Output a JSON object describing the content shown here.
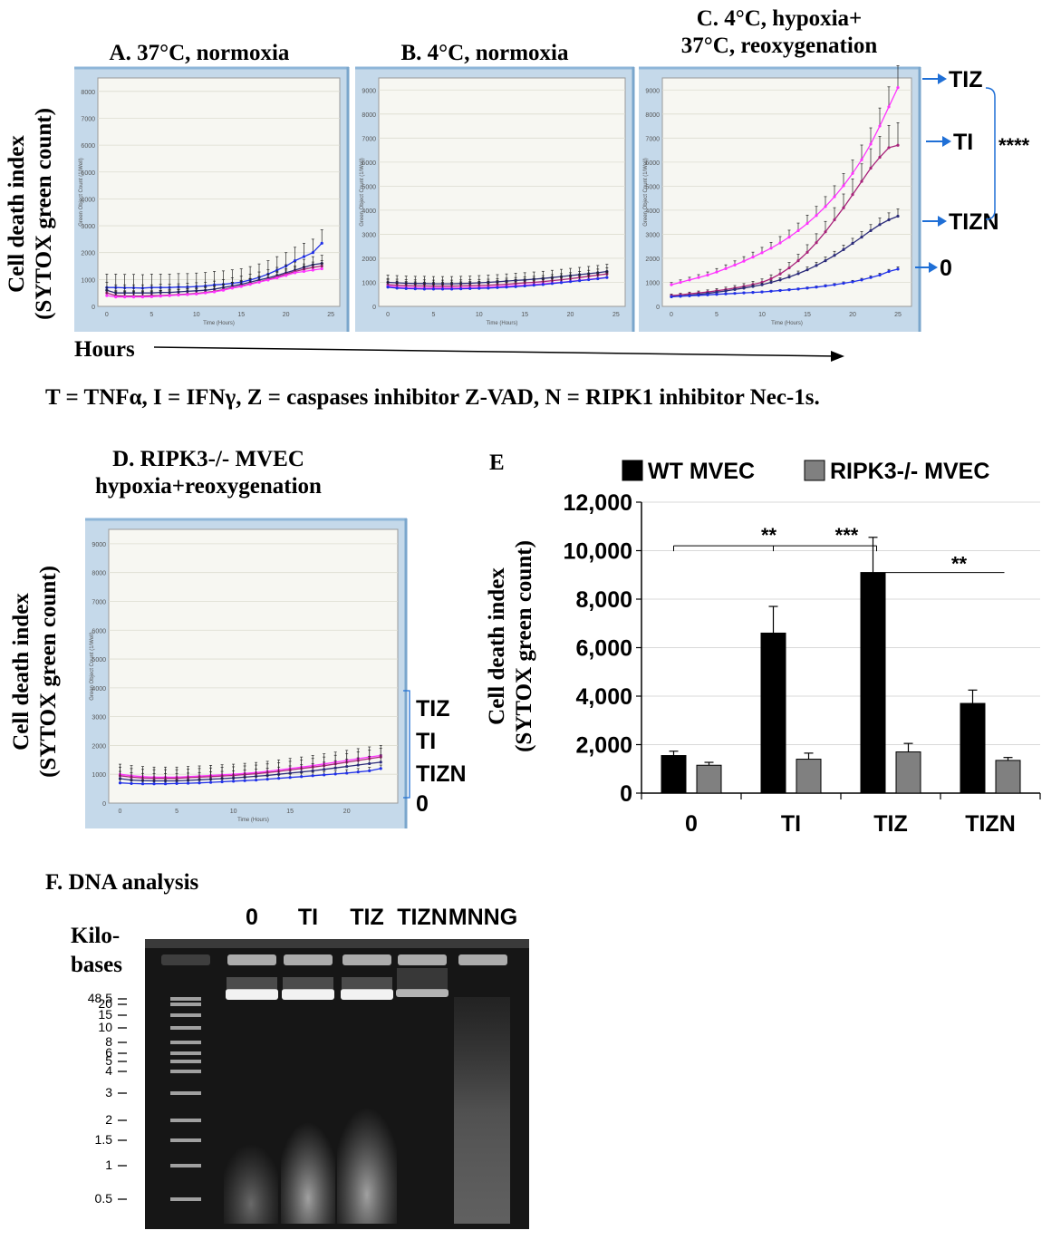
{
  "colors": {
    "pink": "#ff33ff",
    "purple": "#a8227a",
    "navy": "#2b2b7a",
    "blue": "#2030e8",
    "arrow": "#1f6fd6",
    "bar_wt": "#000000",
    "bar_ko": "#808080"
  },
  "figure_note": "T = TNFα, I = IFNγ, Z = caspases inhibitor Z-VAD, N = RIPK1 inhibitor Nec-1s.",
  "shared": {
    "ylabel_line1": "Cell death index",
    "ylabel_line2": "(SYTOX green count)",
    "hours_label": "Hours",
    "inner_ylabel": "Green Object Count (1/Well)",
    "inner_xlabel": "Time (Hours)"
  },
  "chart_data": [
    {
      "id": "A",
      "type": "line",
      "title": "A. 37°C, normoxia",
      "xlabel": "Time (Hours)",
      "ylabel": "Green Object Count (1/Well)",
      "xlim": [
        -1,
        26
      ],
      "ylim": [
        0,
        8500
      ],
      "xticks": [
        0,
        5,
        10,
        15,
        20,
        25
      ],
      "yticks": [
        1000,
        2000,
        3000,
        4000,
        5000,
        6000,
        7000,
        8000
      ],
      "x": [
        0,
        1,
        2,
        3,
        4,
        5,
        6,
        7,
        8,
        9,
        10,
        11,
        12,
        13,
        14,
        15,
        16,
        17,
        18,
        19,
        20,
        21,
        22,
        23,
        24
      ],
      "series": [
        {
          "name": "0",
          "color": "blue",
          "values": [
            700,
            700,
            690,
            690,
            680,
            700,
            700,
            700,
            720,
            720,
            740,
            760,
            800,
            820,
            860,
            900,
            980,
            1080,
            1200,
            1350,
            1500,
            1700,
            1850,
            2000,
            2350
          ],
          "err": 500
        },
        {
          "name": "TIZN",
          "color": "navy",
          "values": [
            600,
            500,
            500,
            500,
            500,
            500,
            520,
            520,
            540,
            560,
            580,
            600,
            640,
            700,
            760,
            820,
            900,
            980,
            1060,
            1150,
            1250,
            1350,
            1450,
            1550,
            1600
          ],
          "err": 300
        },
        {
          "name": "TI",
          "color": "purple",
          "values": [
            500,
            400,
            380,
            380,
            380,
            400,
            400,
            420,
            440,
            460,
            480,
            520,
            560,
            620,
            700,
            760,
            840,
            920,
            1000,
            1100,
            1200,
            1300,
            1380,
            1450,
            1500
          ],
          "err": 200
        },
        {
          "name": "TIZ",
          "color": "pink",
          "values": [
            400,
            350,
            350,
            350,
            350,
            360,
            380,
            400,
            420,
            440,
            460,
            500,
            540,
            600,
            680,
            740,
            820,
            900,
            980,
            1060,
            1150,
            1250,
            1300,
            1350,
            1400
          ],
          "err": 200
        }
      ]
    },
    {
      "id": "B",
      "type": "line",
      "title": "B. 4°C, normoxia",
      "xlabel": "Time (Hours)",
      "ylabel": "Green Object Count (1/Well)",
      "xlim": [
        -1,
        26
      ],
      "ylim": [
        0,
        9500
      ],
      "xticks": [
        0,
        5,
        10,
        15,
        20,
        25
      ],
      "yticks": [
        1000,
        2000,
        3000,
        4000,
        5000,
        6000,
        7000,
        8000,
        9000
      ],
      "x": [
        0,
        1,
        2,
        3,
        4,
        5,
        6,
        7,
        8,
        9,
        10,
        11,
        12,
        13,
        14,
        15,
        16,
        17,
        18,
        19,
        20,
        21,
        22,
        23,
        24
      ],
      "series": [
        {
          "name": "0",
          "color": "navy",
          "values": [
            1000,
            980,
            960,
            950,
            950,
            940,
            940,
            940,
            950,
            960,
            980,
            1000,
            1020,
            1050,
            1080,
            1100,
            1130,
            1160,
            1200,
            1240,
            1280,
            1320,
            1360,
            1400,
            1450
          ],
          "err": 300
        },
        {
          "name": "TIZN",
          "color": "purple",
          "values": [
            900,
            880,
            860,
            850,
            850,
            840,
            840,
            840,
            850,
            860,
            870,
            880,
            900,
            920,
            950,
            980,
            1000,
            1030,
            1070,
            1110,
            1150,
            1200,
            1250,
            1300,
            1350
          ],
          "err": 250
        },
        {
          "name": "TI",
          "color": "pink",
          "values": [
            850,
            800,
            780,
            770,
            760,
            760,
            760,
            760,
            770,
            780,
            790,
            800,
            820,
            840,
            860,
            880,
            910,
            940,
            970,
            1000,
            1040,
            1080,
            1120,
            1160,
            1200
          ],
          "err": 250
        },
        {
          "name": "TIZ",
          "color": "blue",
          "values": [
            800,
            760,
            740,
            730,
            720,
            720,
            720,
            720,
            730,
            740,
            750,
            760,
            780,
            800,
            820,
            850,
            880,
            910,
            950,
            990,
            1030,
            1070,
            1110,
            1150,
            1200
          ],
          "err": 200
        }
      ]
    },
    {
      "id": "C",
      "type": "line",
      "title": "C. 4°C, hypoxia+ 37°C, reoxygenation",
      "title_line1": "C. 4°C, hypoxia+",
      "title_line2": "37°C, reoxygenation",
      "xlabel": "Time (Hours)",
      "ylabel": "Green Object Count (1/Well)",
      "xlim": [
        -1,
        26.5
      ],
      "ylim": [
        0,
        9500
      ],
      "xticks": [
        0,
        5,
        10,
        15,
        20,
        25
      ],
      "yticks": [
        1000,
        2000,
        3000,
        4000,
        5000,
        6000,
        7000,
        8000,
        9000
      ],
      "x": [
        0,
        1,
        2,
        3,
        4,
        5,
        6,
        7,
        8,
        9,
        10,
        11,
        12,
        13,
        14,
        15,
        16,
        17,
        18,
        19,
        20,
        21,
        22,
        23,
        24,
        25
      ],
      "series": [
        {
          "name": "TIZ",
          "color": "pink",
          "values": [
            900,
            1000,
            1100,
            1200,
            1300,
            1430,
            1570,
            1720,
            1880,
            2050,
            2230,
            2420,
            2640,
            2880,
            3150,
            3450,
            3780,
            4150,
            4560,
            5020,
            5530,
            6100,
            6750,
            7500,
            8300,
            9100
          ],
          "err_frac": 0.1
        },
        {
          "name": "TI",
          "color": "purple",
          "values": [
            450,
            480,
            520,
            560,
            600,
            650,
            700,
            760,
            830,
            910,
            1000,
            1150,
            1350,
            1600,
            1900,
            2250,
            2650,
            3100,
            3600,
            4100,
            4650,
            5200,
            5750,
            6200,
            6600,
            6700
          ],
          "err_frac": 0.14
        },
        {
          "name": "TIZN",
          "color": "navy",
          "values": [
            400,
            430,
            460,
            500,
            540,
            590,
            640,
            700,
            760,
            830,
            900,
            1000,
            1100,
            1220,
            1360,
            1520,
            1700,
            1900,
            2120,
            2360,
            2620,
            2880,
            3150,
            3400,
            3600,
            3750
          ],
          "err_frac": 0.08
        },
        {
          "name": "0",
          "color": "blue",
          "values": [
            400,
            420,
            440,
            460,
            480,
            500,
            520,
            540,
            560,
            580,
            600,
            630,
            660,
            690,
            720,
            760,
            800,
            850,
            900,
            960,
            1020,
            1100,
            1200,
            1300,
            1450,
            1550
          ],
          "err_frac": 0.06
        }
      ]
    },
    {
      "id": "D",
      "type": "line",
      "title": "D. RIPK3-/- MVEC hypoxia+reoxygenation",
      "title_line1": "D. RIPK3-/- MVEC",
      "title_line2": "hypoxia+reoxygenation",
      "xlabel": "Time (Hours)",
      "ylabel": "Green Object Count (1/Well)",
      "xlim": [
        -1,
        24.5
      ],
      "ylim": [
        0,
        9500
      ],
      "xticks": [
        0,
        5,
        10,
        15,
        20
      ],
      "yticks": [
        1000,
        2000,
        3000,
        4000,
        5000,
        6000,
        7000,
        8000,
        9000
      ],
      "x": [
        0,
        1,
        2,
        3,
        4,
        5,
        6,
        7,
        8,
        9,
        10,
        11,
        12,
        13,
        14,
        15,
        16,
        17,
        18,
        19,
        20,
        21,
        22,
        23
      ],
      "series": [
        {
          "name": "TIZ",
          "color": "pink",
          "values": [
            1000,
            950,
            920,
            900,
            900,
            900,
            920,
            940,
            960,
            980,
            1000,
            1030,
            1060,
            1100,
            1150,
            1200,
            1250,
            1300,
            1360,
            1420,
            1480,
            1540,
            1600,
            1650
          ],
          "err": 350
        },
        {
          "name": "TI",
          "color": "purple",
          "values": [
            950,
            900,
            870,
            860,
            860,
            860,
            880,
            900,
            920,
            940,
            960,
            990,
            1020,
            1060,
            1100,
            1150,
            1200,
            1250,
            1300,
            1360,
            1420,
            1480,
            1540,
            1600
          ],
          "err": 300
        },
        {
          "name": "TIZN",
          "color": "navy",
          "values": [
            850,
            800,
            780,
            770,
            770,
            770,
            790,
            810,
            830,
            850,
            870,
            900,
            930,
            960,
            1000,
            1040,
            1080,
            1120,
            1170,
            1220,
            1270,
            1320,
            1370,
            1420
          ],
          "err": 250
        },
        {
          "name": "0",
          "color": "blue",
          "values": [
            700,
            680,
            670,
            670,
            670,
            680,
            690,
            700,
            720,
            740,
            760,
            780,
            800,
            830,
            860,
            890,
            920,
            950,
            980,
            1010,
            1040,
            1080,
            1120,
            1200
          ],
          "err": 120
        }
      ]
    },
    {
      "id": "E",
      "type": "bar",
      "title": "E",
      "categories": [
        "0",
        "TI",
        "TIZ",
        "TIZN"
      ],
      "ylabel": "Cell death index (SYTOX green count)",
      "ylim": [
        0,
        12000
      ],
      "yticks": [
        0,
        2000,
        4000,
        6000,
        8000,
        10000,
        12000
      ],
      "ytick_labels": [
        "0",
        "2,000",
        "4,000",
        "6,000",
        "8,000",
        "10,000",
        "12,000"
      ],
      "legend": "top",
      "series": [
        {
          "name": "WT MVEC",
          "color": "bar_wt",
          "values": [
            1550,
            6600,
            9100,
            3700
          ],
          "err": [
            180,
            1100,
            1450,
            550
          ]
        },
        {
          "name": "RIPK3-/- MVEC",
          "color": "bar_ko",
          "values": [
            1150,
            1400,
            1700,
            1350
          ],
          "err": [
            120,
            250,
            350,
            120
          ]
        }
      ],
      "significance": [
        {
          "label": "**"
        },
        {
          "label": "***"
        },
        {
          "label": "**"
        }
      ]
    }
  ],
  "panelC_side": {
    "labels": [
      "TIZ",
      "TI",
      "TIZN",
      "0"
    ],
    "stars": "****"
  },
  "panelD_side": {
    "labels": [
      "TIZ",
      "TI",
      "TIZN",
      "0"
    ]
  },
  "gel": {
    "title": "F. DNA analysis",
    "lanes": [
      "0",
      "TI",
      "TIZ",
      "TIZN",
      "MNNG"
    ],
    "axis_title_line1": "Kilo-",
    "axis_title_line2": "bases",
    "markers": [
      "48.5",
      "20",
      "15",
      "10",
      "8",
      "6",
      "5",
      "4",
      "3",
      "2",
      "1.5",
      "1",
      "0.5"
    ]
  }
}
